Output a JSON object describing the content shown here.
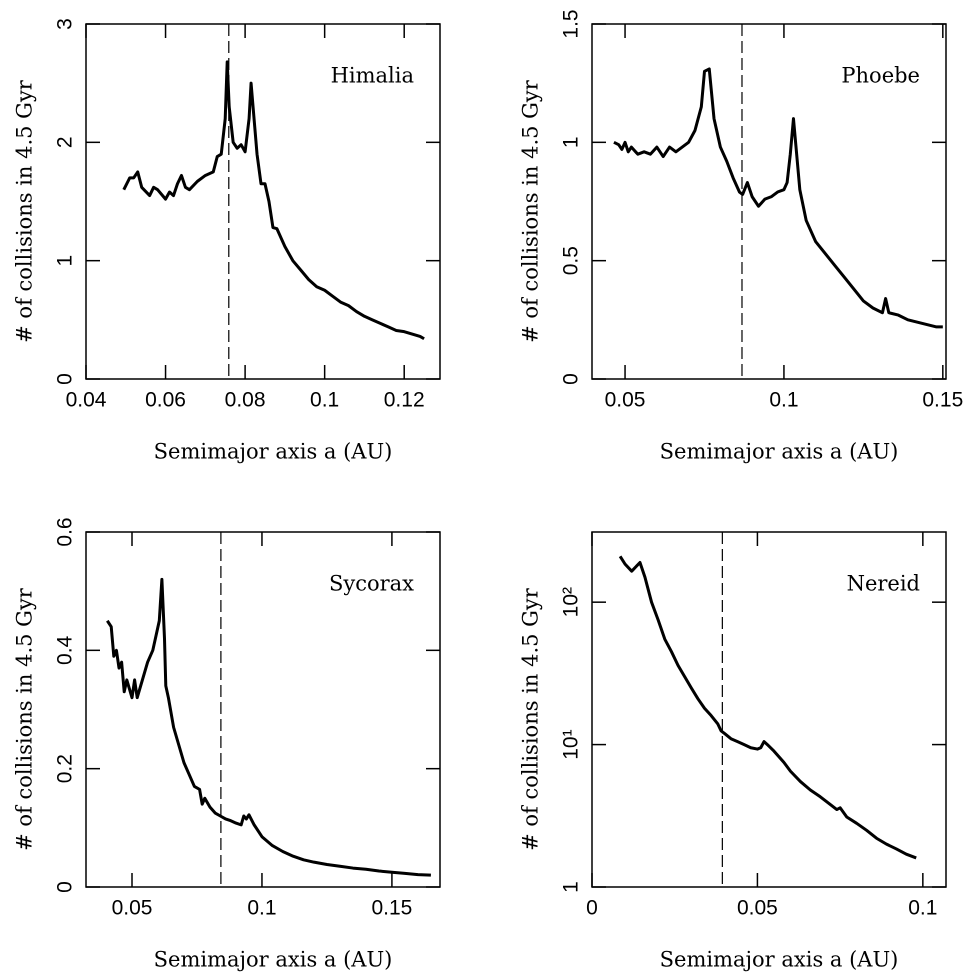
{
  "chart_data": [
    {
      "type": "line",
      "annotation": "Himalia",
      "xlabel": "Semimajor axis a (AU)",
      "ylabel": "# of collisions in 4.5 Gyr",
      "color": "#000000",
      "vline": 0.0759,
      "xlim": [
        0.04,
        0.129
      ],
      "ylim": [
        0,
        3
      ],
      "xticks": [
        0.04,
        0.06,
        0.08,
        0.1,
        0.12
      ],
      "yticks": [
        0,
        1,
        2,
        3
      ],
      "ylog": false,
      "x": [
        0.0495,
        0.051,
        0.052,
        0.053,
        0.054,
        0.056,
        0.057,
        0.058,
        0.06,
        0.061,
        0.062,
        0.063,
        0.064,
        0.065,
        0.066,
        0.068,
        0.07,
        0.072,
        0.073,
        0.074,
        0.075,
        0.0755,
        0.076,
        0.077,
        0.078,
        0.079,
        0.08,
        0.081,
        0.0815,
        0.082,
        0.083,
        0.084,
        0.085,
        0.086,
        0.087,
        0.088,
        0.09,
        0.092,
        0.094,
        0.096,
        0.098,
        0.1,
        0.102,
        0.104,
        0.106,
        0.108,
        0.11,
        0.112,
        0.114,
        0.116,
        0.118,
        0.12,
        0.122,
        0.124,
        0.125
      ],
      "values": [
        1.6,
        1.7,
        1.7,
        1.75,
        1.62,
        1.55,
        1.62,
        1.6,
        1.52,
        1.58,
        1.55,
        1.65,
        1.72,
        1.62,
        1.6,
        1.67,
        1.72,
        1.75,
        1.88,
        1.9,
        2.2,
        2.68,
        2.3,
        2.0,
        1.95,
        1.98,
        1.92,
        2.2,
        2.5,
        2.3,
        1.9,
        1.65,
        1.65,
        1.5,
        1.28,
        1.27,
        1.12,
        1.0,
        0.92,
        0.84,
        0.78,
        0.75,
        0.7,
        0.65,
        0.62,
        0.57,
        0.53,
        0.5,
        0.47,
        0.44,
        0.41,
        0.4,
        0.38,
        0.36,
        0.34
      ]
    },
    {
      "type": "line",
      "annotation": "Phoebe",
      "xlabel": "Semimajor axis a (AU)",
      "ylabel": "# of collisions in 4.5 Gyr",
      "color": "#000000",
      "vline": 0.0868,
      "xlim": [
        0.0396,
        0.151
      ],
      "ylim": [
        0,
        1.5
      ],
      "xticks": [
        0.05,
        0.1,
        0.15
      ],
      "yticks": [
        0,
        0.5,
        1,
        1.5
      ],
      "ylog": false,
      "x": [
        0.0465,
        0.048,
        0.049,
        0.05,
        0.051,
        0.052,
        0.054,
        0.056,
        0.058,
        0.06,
        0.062,
        0.064,
        0.066,
        0.068,
        0.07,
        0.072,
        0.074,
        0.075,
        0.0765,
        0.078,
        0.08,
        0.082,
        0.084,
        0.086,
        0.087,
        0.0885,
        0.09,
        0.092,
        0.094,
        0.096,
        0.098,
        0.1,
        0.101,
        0.102,
        0.103,
        0.104,
        0.105,
        0.107,
        0.11,
        0.113,
        0.116,
        0.119,
        0.122,
        0.125,
        0.128,
        0.131,
        0.132,
        0.133,
        0.136,
        0.139,
        0.142,
        0.145,
        0.148,
        0.15
      ],
      "values": [
        1.0,
        0.99,
        0.97,
        1.0,
        0.96,
        0.98,
        0.95,
        0.96,
        0.95,
        0.98,
        0.94,
        0.98,
        0.96,
        0.98,
        1.0,
        1.05,
        1.15,
        1.3,
        1.31,
        1.1,
        0.98,
        0.92,
        0.85,
        0.79,
        0.78,
        0.83,
        0.77,
        0.73,
        0.76,
        0.77,
        0.79,
        0.8,
        0.83,
        0.95,
        1.1,
        0.95,
        0.8,
        0.67,
        0.58,
        0.53,
        0.48,
        0.43,
        0.38,
        0.33,
        0.3,
        0.28,
        0.34,
        0.28,
        0.27,
        0.25,
        0.24,
        0.23,
        0.22,
        0.22
      ]
    },
    {
      "type": "line",
      "annotation": "Sycorax",
      "xlabel": "Semimajor axis a (AU)",
      "ylabel": "# of collisions in 4.5 Gyr",
      "color": "#000000",
      "vline": 0.0842,
      "xlim": [
        0.0323,
        0.1685
      ],
      "ylim": [
        0,
        0.6
      ],
      "xticks": [
        0.05,
        0.1,
        0.15
      ],
      "yticks": [
        0,
        0.2,
        0.4,
        0.6
      ],
      "ylog": false,
      "x": [
        0.0405,
        0.042,
        0.043,
        0.044,
        0.045,
        0.046,
        0.047,
        0.048,
        0.05,
        0.051,
        0.052,
        0.054,
        0.056,
        0.058,
        0.0605,
        0.0615,
        0.0625,
        0.063,
        0.064,
        0.066,
        0.068,
        0.07,
        0.072,
        0.074,
        0.076,
        0.077,
        0.078,
        0.08,
        0.082,
        0.084,
        0.086,
        0.088,
        0.09,
        0.092,
        0.093,
        0.094,
        0.095,
        0.097,
        0.1,
        0.104,
        0.108,
        0.112,
        0.116,
        0.12,
        0.125,
        0.13,
        0.135,
        0.14,
        0.145,
        0.15,
        0.155,
        0.16,
        0.165
      ],
      "values": [
        0.45,
        0.44,
        0.39,
        0.4,
        0.37,
        0.38,
        0.33,
        0.35,
        0.32,
        0.35,
        0.32,
        0.35,
        0.38,
        0.4,
        0.45,
        0.52,
        0.42,
        0.34,
        0.32,
        0.27,
        0.24,
        0.21,
        0.19,
        0.17,
        0.165,
        0.14,
        0.15,
        0.135,
        0.125,
        0.12,
        0.115,
        0.112,
        0.108,
        0.105,
        0.12,
        0.115,
        0.122,
        0.105,
        0.085,
        0.07,
        0.06,
        0.052,
        0.046,
        0.042,
        0.038,
        0.035,
        0.032,
        0.03,
        0.027,
        0.025,
        0.023,
        0.021,
        0.02
      ]
    },
    {
      "type": "line",
      "annotation": "Nereid",
      "xlabel": "Semimajor axis a (AU)",
      "ylabel": "# of collisions in 4.5 Gyr",
      "color": "#000000",
      "vline": 0.0394,
      "xlim": [
        0,
        0.107
      ],
      "ylim": [
        1,
        311
      ],
      "xticks": [
        0,
        0.05,
        0.1
      ],
      "yticks": [
        1,
        {
          "value": 10,
          "label": "10¹"
        },
        {
          "value": 100,
          "label": "10²"
        }
      ],
      "ylog": true,
      "x": [
        0.0085,
        0.01,
        0.012,
        0.0145,
        0.016,
        0.018,
        0.02,
        0.022,
        0.024,
        0.026,
        0.028,
        0.03,
        0.032,
        0.034,
        0.036,
        0.038,
        0.039,
        0.04,
        0.042,
        0.044,
        0.046,
        0.048,
        0.05,
        0.051,
        0.052,
        0.053,
        0.055,
        0.058,
        0.06,
        0.063,
        0.066,
        0.069,
        0.072,
        0.074,
        0.075,
        0.077,
        0.08,
        0.083,
        0.086,
        0.089,
        0.092,
        0.095,
        0.098
      ],
      "values": [
        210,
        185,
        165,
        190,
        150,
        100,
        75,
        55,
        45,
        36,
        30,
        25,
        21,
        18,
        16,
        14,
        12.5,
        12,
        11,
        10.5,
        10,
        9.5,
        9.3,
        9.5,
        10.5,
        10,
        9,
        7.5,
        6.5,
        5.5,
        4.8,
        4.3,
        3.8,
        3.5,
        3.6,
        3.1,
        2.8,
        2.5,
        2.2,
        2.0,
        1.85,
        1.7,
        1.6
      ]
    }
  ]
}
